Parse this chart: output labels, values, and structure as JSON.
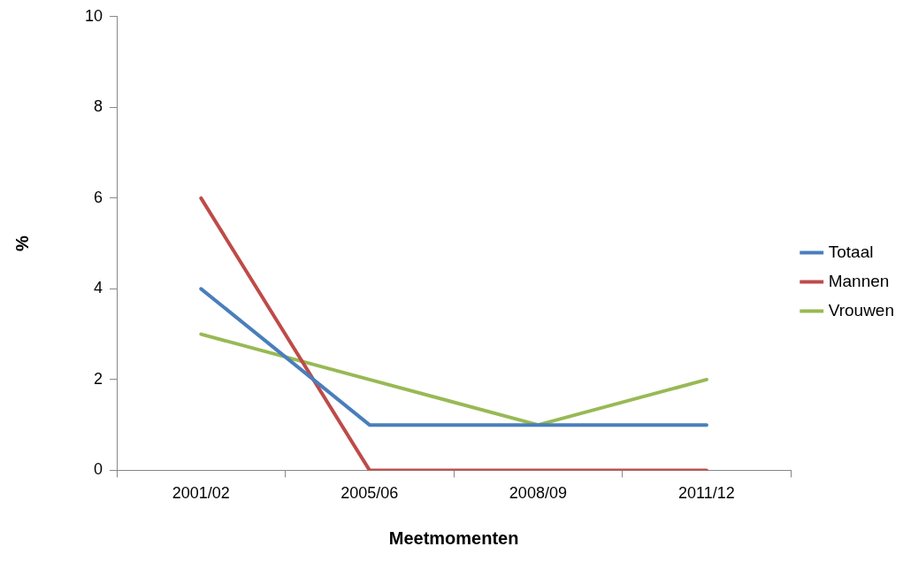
{
  "chart_data": {
    "type": "line",
    "xlabel": "Meetmomenten",
    "ylabel": "%",
    "categories": [
      "2001/02",
      "2005/06",
      "2008/09",
      "2011/12"
    ],
    "series": [
      {
        "name": "Totaal",
        "color": "#4a7ebb",
        "values": [
          4,
          1,
          1,
          1
        ]
      },
      {
        "name": "Mannen",
        "color": "#be4b48",
        "values": [
          6,
          0,
          0,
          0
        ]
      },
      {
        "name": "Vrouwen",
        "color": "#98b954",
        "values": [
          3,
          2,
          1,
          2
        ]
      }
    ],
    "ylim": [
      0,
      10
    ],
    "yticks": [
      0,
      2,
      4,
      6,
      8,
      10
    ],
    "grid": false,
    "legend": "right",
    "marker": "none",
    "line_style": "solid"
  }
}
